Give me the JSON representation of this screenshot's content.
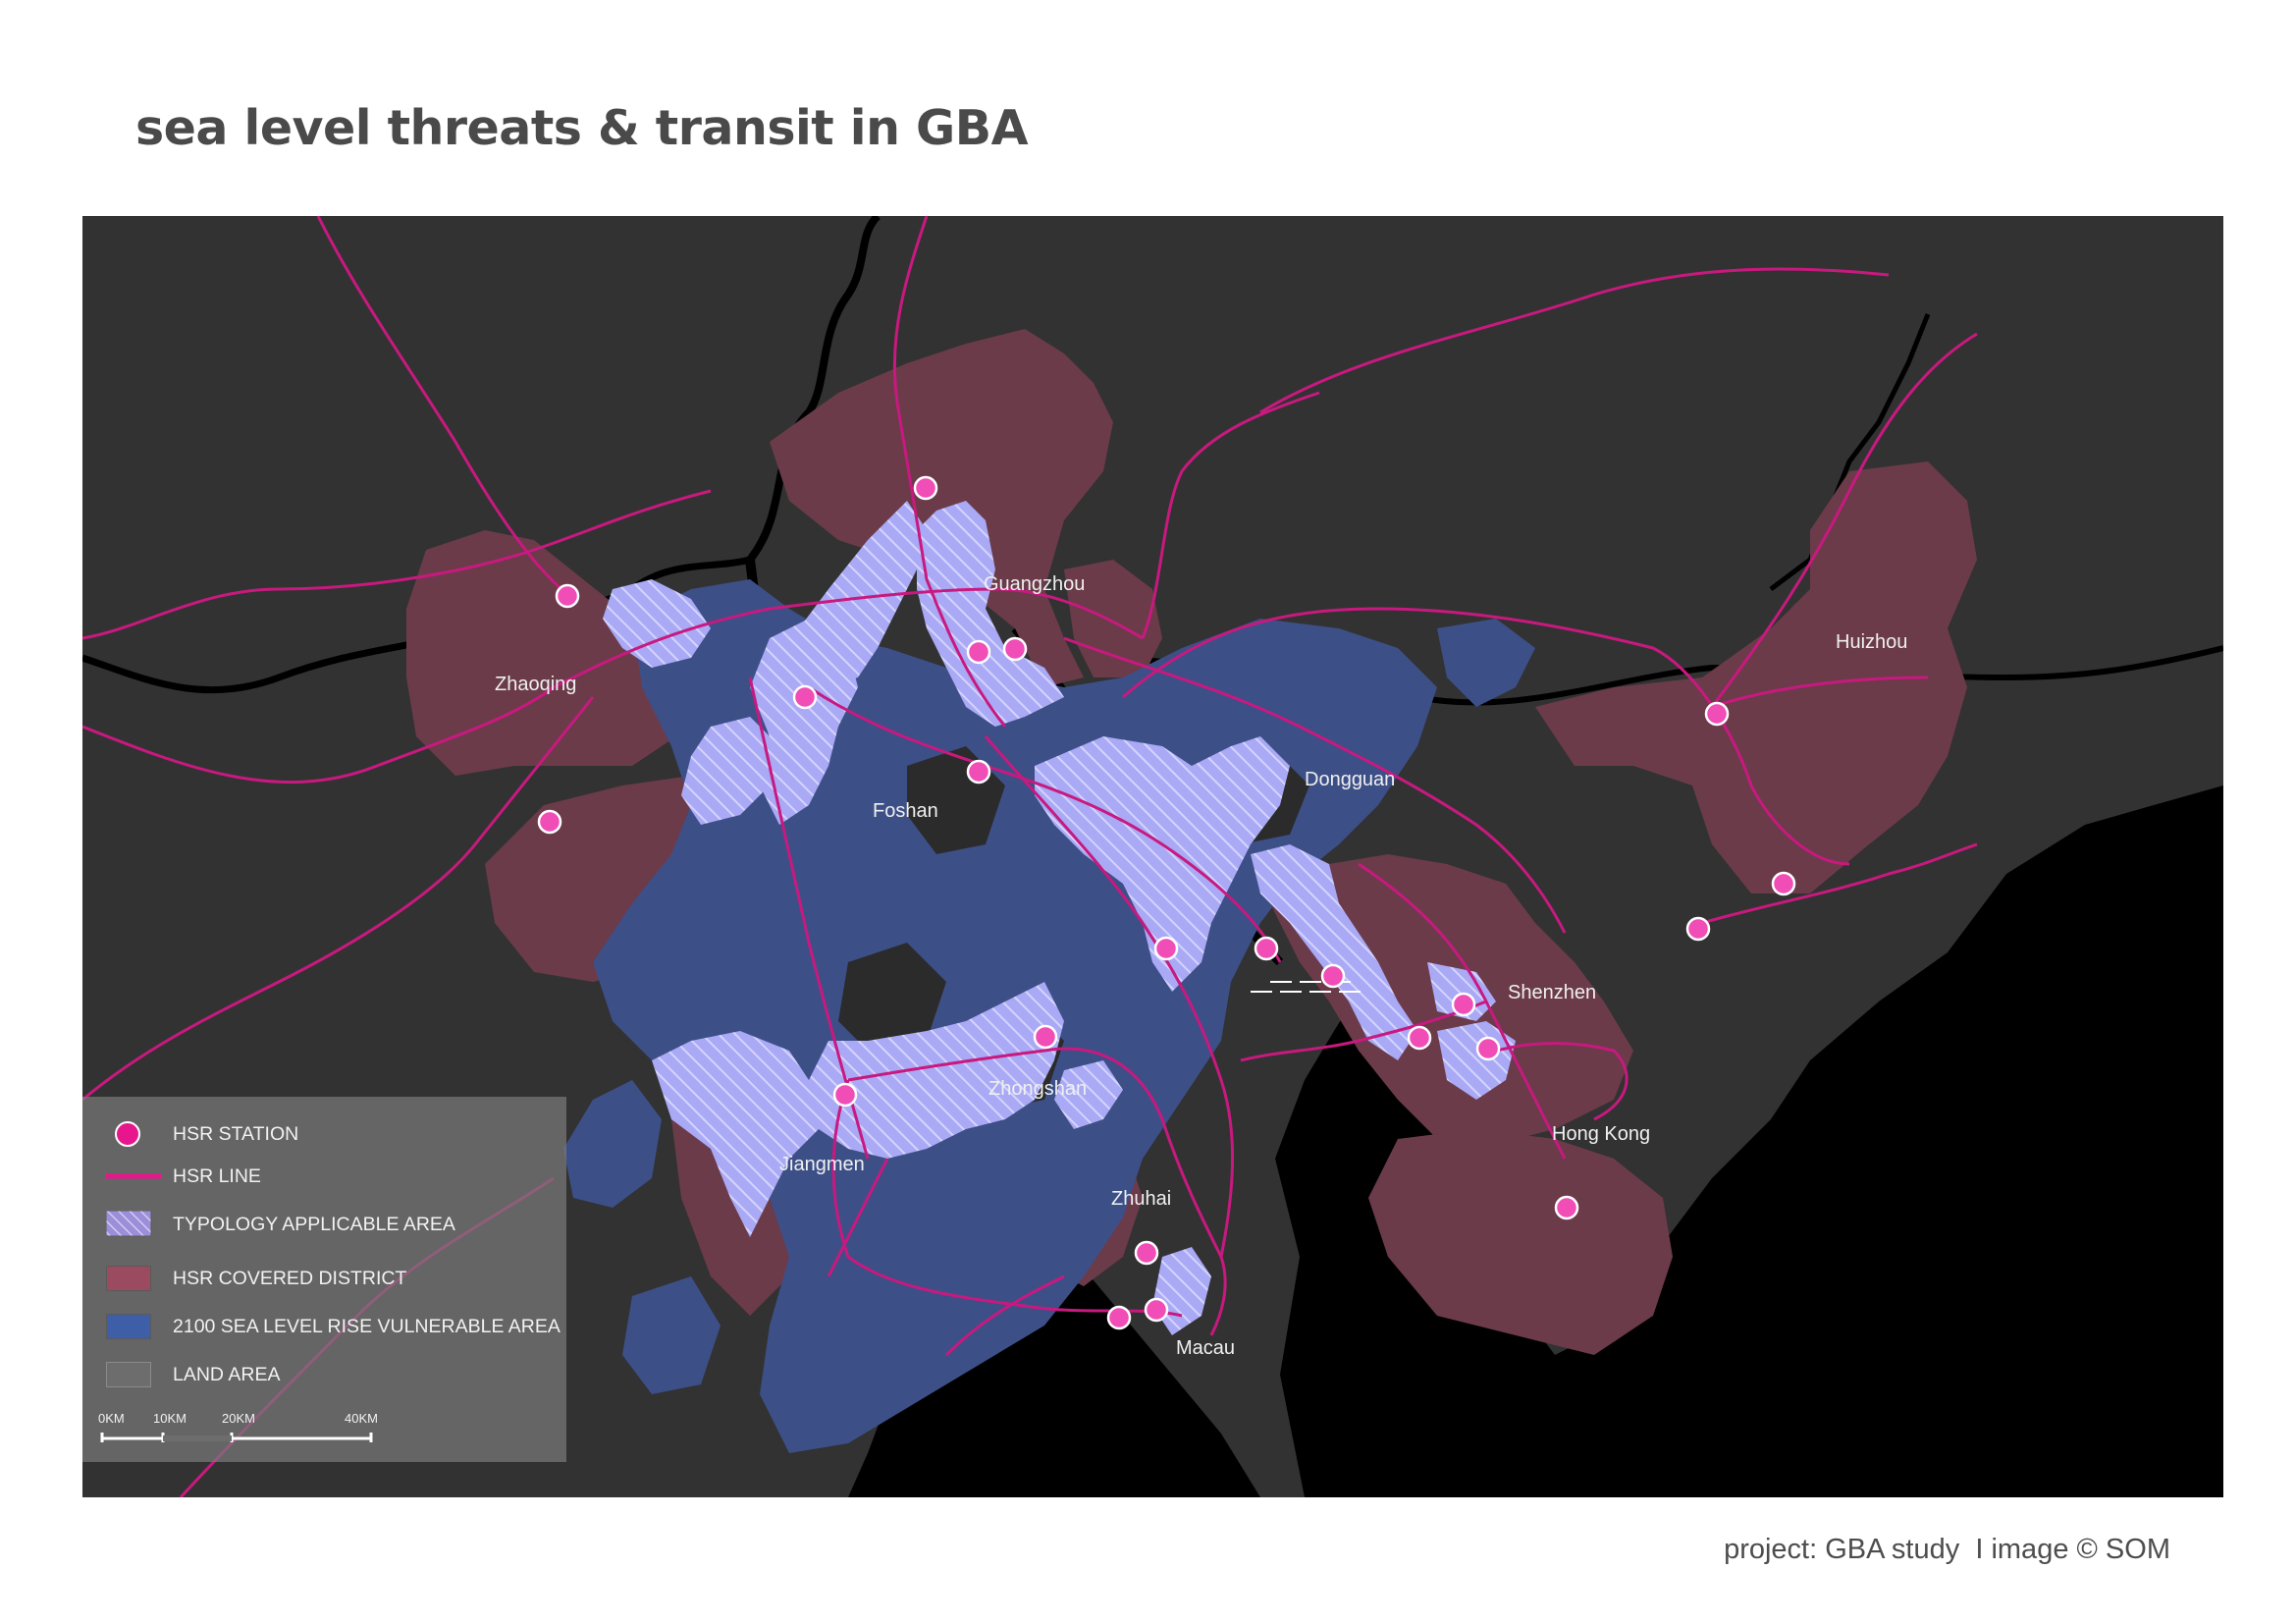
{
  "title": "sea level threats & transit in GBA",
  "credit": "project: GBA study  I image © SOM",
  "colors": {
    "land": "#323232",
    "water": "#000000",
    "hsr_district": "#6b3b4a",
    "sea_level_vulnerable": "#3d4f87",
    "typology": "#a9a9f5",
    "hsr_line": "#c8197f",
    "hsr_station": "#f04db6"
  },
  "cities": [
    {
      "id": "guangzhou",
      "name": "Guangzhou"
    },
    {
      "id": "zhaoqing",
      "name": "Zhaoqing"
    },
    {
      "id": "foshan",
      "name": "Foshan"
    },
    {
      "id": "dongguan",
      "name": "Dongguan"
    },
    {
      "id": "huizhou",
      "name": "Huizhou"
    },
    {
      "id": "shenzhen",
      "name": "Shenzhen"
    },
    {
      "id": "zhongshan",
      "name": "Zhongshan"
    },
    {
      "id": "jiangmen",
      "name": "Jiangmen"
    },
    {
      "id": "zhuhai",
      "name": "Zhuhai"
    },
    {
      "id": "hongkong",
      "name": "Hong Kong"
    },
    {
      "id": "macau",
      "name": "Macau"
    }
  ],
  "legend": {
    "items": [
      {
        "id": "hsr-station",
        "label": "HSR STATION",
        "icon": "circle"
      },
      {
        "id": "hsr-line",
        "label": "HSR LINE",
        "icon": "line"
      },
      {
        "id": "typology",
        "label": "TYPOLOGY APPLICABLE AREA",
        "icon": "hatched-swatch"
      },
      {
        "id": "hsr-district",
        "label": "HSR COVERED DISTRICT",
        "icon": "swatch"
      },
      {
        "id": "sea-level",
        "label": "2100 SEA LEVEL RISE VULNERABLE AREA",
        "icon": "swatch"
      },
      {
        "id": "land",
        "label": "LAND AREA",
        "icon": "swatch"
      }
    ],
    "scale": [
      "0KM",
      "10KM",
      "20KM",
      "40KM"
    ]
  }
}
